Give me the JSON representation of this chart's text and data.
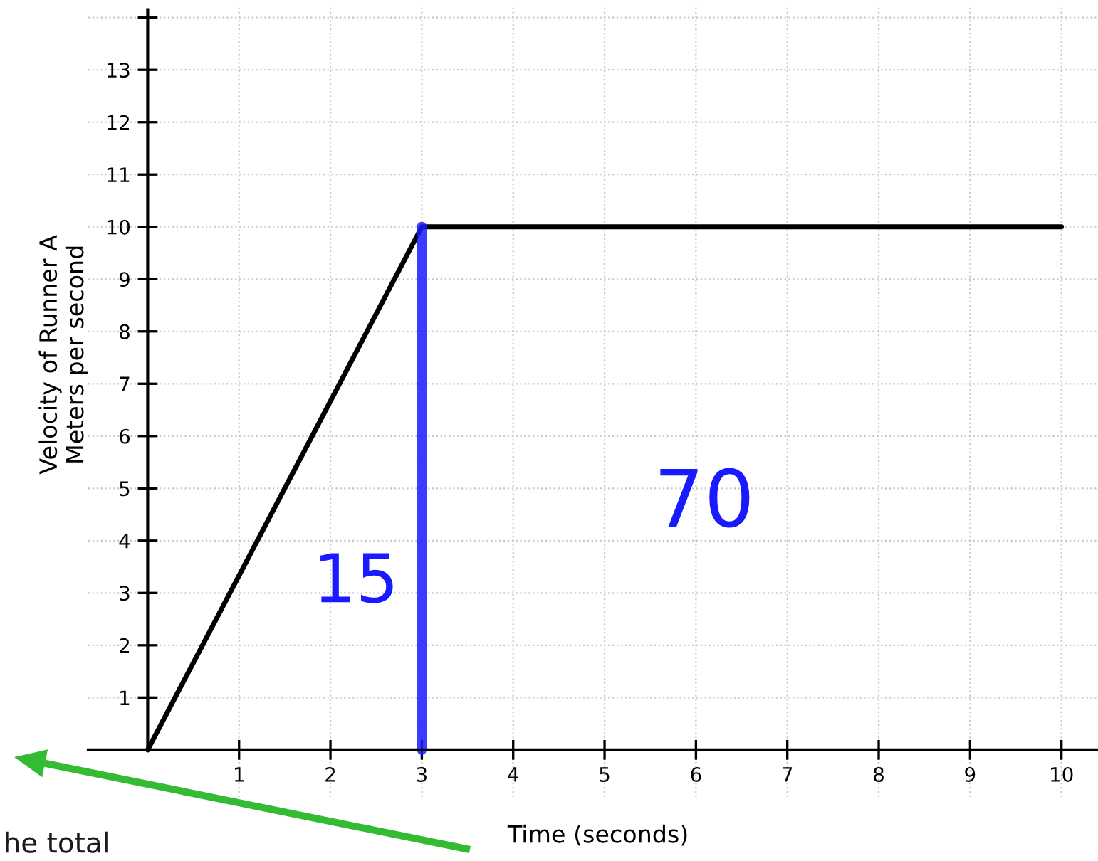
{
  "chart_data": {
    "type": "line",
    "xlabel": "Time (seconds)",
    "ylabel": "Velocity of Runner A\nMeters per second",
    "x": [
      0,
      3,
      10
    ],
    "series": [
      {
        "color": "#000000",
        "values": [
          0,
          10,
          10
        ]
      },
      {
        "color": "#1a1aff",
        "x": [
          3,
          3
        ],
        "values": [
          0,
          10
        ]
      }
    ],
    "xlim": [
      -0.65,
      10.4
    ],
    "ylim": [
      -0.9,
      14.2
    ],
    "xticks": [
      1,
      2,
      3,
      4,
      5,
      6,
      7,
      8,
      9,
      10
    ],
    "yticks": [
      1,
      2,
      3,
      4,
      5,
      6,
      7,
      8,
      9,
      10,
      11,
      12,
      13,
      {
        "value": 14,
        "label": null
      }
    ],
    "grid": true,
    "legend": false,
    "marker": "none",
    "line_style": "solid",
    "annotations": [
      "15",
      "70",
      "he total"
    ]
  }
}
